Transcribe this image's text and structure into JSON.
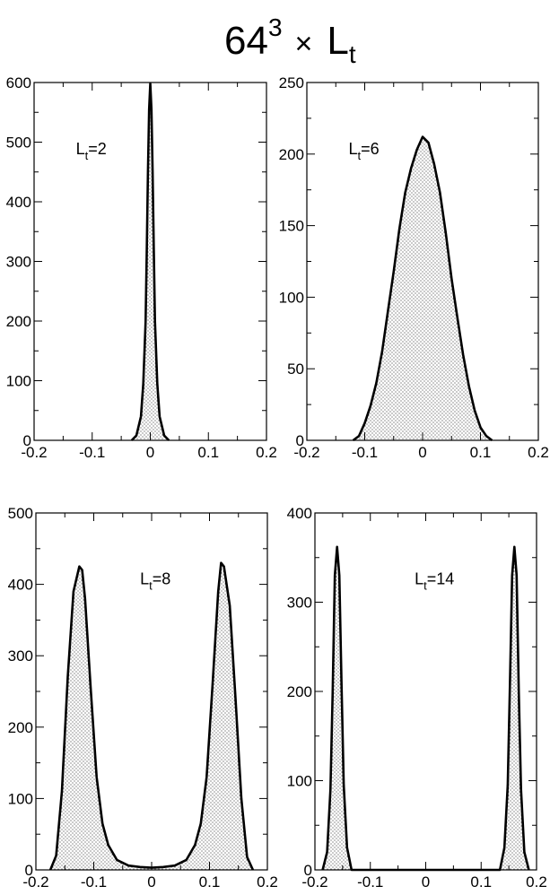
{
  "figure_title": {
    "base": "64",
    "exponent": "3",
    "times": "×",
    "symbol": "L",
    "subscript": "t"
  },
  "colors": {
    "line": "#000000",
    "fill_dots": "#000000",
    "background": "#ffffff"
  },
  "chart_data": [
    {
      "type": "area",
      "label": {
        "symbol": "L",
        "sub": "t",
        "text": "=2"
      },
      "xlim": [
        -0.2,
        0.2
      ],
      "ylim": [
        0,
        600
      ],
      "xticks": [
        "-0.2",
        "-0.1",
        "0",
        "0.1",
        "0.2"
      ],
      "yticks": [
        "0",
        "100",
        "200",
        "300",
        "400",
        "500",
        "600"
      ],
      "legend_position": "top-left",
      "x": [
        -0.032,
        -0.024,
        -0.016,
        -0.012,
        -0.008,
        -0.006,
        -0.004,
        -0.002,
        0.0,
        0.002,
        0.004,
        0.006,
        0.008,
        0.012,
        0.016,
        0.024,
        0.032
      ],
      "y": [
        0,
        8,
        40,
        95,
        200,
        320,
        450,
        555,
        598,
        555,
        450,
        320,
        200,
        95,
        40,
        8,
        0
      ]
    },
    {
      "type": "area",
      "label": {
        "symbol": "L",
        "sub": "t",
        "text": "=6"
      },
      "xlim": [
        -0.2,
        0.2
      ],
      "ylim": [
        0,
        250
      ],
      "xticks": [
        "-0.2",
        "-0.1",
        "0",
        "0.1",
        "0.2"
      ],
      "yticks": [
        "0",
        "50",
        "100",
        "150",
        "200",
        "250"
      ],
      "legend_position": "top-left",
      "x": [
        -0.12,
        -0.11,
        -0.1,
        -0.09,
        -0.08,
        -0.07,
        -0.06,
        -0.05,
        -0.04,
        -0.03,
        -0.02,
        -0.01,
        0.0,
        0.01,
        0.02,
        0.03,
        0.04,
        0.05,
        0.06,
        0.07,
        0.08,
        0.09,
        0.1,
        0.11,
        0.12
      ],
      "y": [
        0,
        3,
        12,
        24,
        40,
        62,
        90,
        118,
        148,
        173,
        190,
        203,
        212,
        208,
        193,
        173,
        145,
        113,
        86,
        60,
        38,
        21,
        9,
        3,
        0
      ]
    },
    {
      "type": "area",
      "label": {
        "symbol": "L",
        "sub": "t",
        "text": "=8"
      },
      "xlim": [
        -0.2,
        0.2
      ],
      "ylim": [
        0,
        500
      ],
      "xticks": [
        "-0.2",
        "-0.1",
        "0",
        "0.1",
        "0.2"
      ],
      "yticks": [
        "0",
        "100",
        "200",
        "300",
        "400",
        "500"
      ],
      "legend_position": "top-center",
      "x": [
        -0.175,
        -0.165,
        -0.155,
        -0.145,
        -0.135,
        -0.125,
        -0.12,
        -0.115,
        -0.105,
        -0.095,
        -0.085,
        -0.075,
        -0.06,
        -0.04,
        -0.02,
        0.0,
        0.02,
        0.04,
        0.06,
        0.075,
        0.085,
        0.095,
        0.105,
        0.115,
        0.12,
        0.125,
        0.135,
        0.145,
        0.155,
        0.165,
        0.175
      ],
      "y": [
        0,
        20,
        110,
        270,
        390,
        425,
        420,
        380,
        250,
        130,
        65,
        35,
        14,
        6,
        4,
        3,
        4,
        6,
        14,
        35,
        65,
        130,
        255,
        390,
        430,
        425,
        370,
        240,
        100,
        18,
        0
      ]
    },
    {
      "type": "area",
      "label": {
        "symbol": "L",
        "sub": "t",
        "text": "=14"
      },
      "xlim": [
        -0.2,
        0.2
      ],
      "ylim": [
        0,
        400
      ],
      "xticks": [
        "-0.2",
        "-0.1",
        "0",
        "0.1",
        "0.2"
      ],
      "yticks": [
        "0",
        "100",
        "200",
        "300",
        "400"
      ],
      "legend_position": "top-center",
      "x": [
        -0.186,
        -0.178,
        -0.172,
        -0.168,
        -0.164,
        -0.16,
        -0.156,
        -0.152,
        -0.148,
        -0.142,
        -0.134,
        0.134,
        0.142,
        0.148,
        0.152,
        0.156,
        0.16,
        0.164,
        0.168,
        0.172,
        0.178,
        0.186
      ],
      "y": [
        0,
        20,
        90,
        200,
        330,
        362,
        330,
        210,
        95,
        25,
        0,
        0,
        25,
        95,
        210,
        330,
        362,
        330,
        200,
        90,
        20,
        0
      ]
    }
  ]
}
